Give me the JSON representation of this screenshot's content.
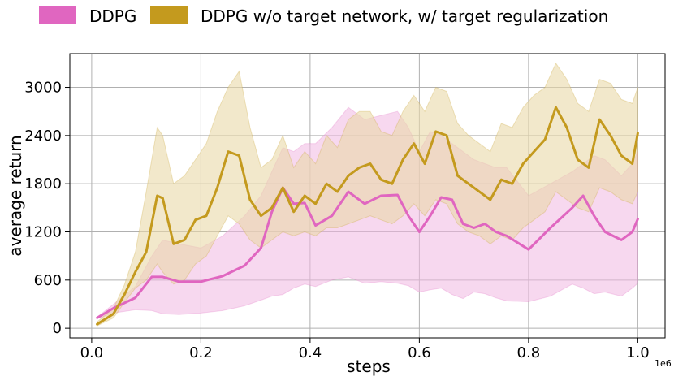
{
  "chart_data": {
    "type": "line",
    "title": "",
    "xlabel": "steps",
    "ylabel": "average return",
    "x_scale_label": "1e6",
    "xlim": [
      -0.04,
      1.05
    ],
    "ylim": [
      -120,
      3420
    ],
    "xticks": [
      0.0,
      0.2,
      0.4,
      0.6,
      0.8,
      1.0
    ],
    "xtick_labels": [
      "0.0",
      "0.2",
      "0.4",
      "0.6",
      "0.8",
      "1.0"
    ],
    "yticks": [
      0,
      600,
      1200,
      1800,
      2400,
      3000
    ],
    "ytick_labels": [
      "0",
      "600",
      "1200",
      "1800",
      "2400",
      "3000"
    ],
    "grid": true,
    "legend_position": "top",
    "series": [
      {
        "name": "DDPG",
        "color": "#e066c0",
        "band_color": "#f0b8e2",
        "x": [
          0.01,
          0.04,
          0.08,
          0.11,
          0.13,
          0.16,
          0.2,
          0.24,
          0.28,
          0.31,
          0.33,
          0.35,
          0.37,
          0.39,
          0.41,
          0.44,
          0.47,
          0.5,
          0.53,
          0.56,
          0.58,
          0.6,
          0.62,
          0.64,
          0.66,
          0.68,
          0.7,
          0.72,
          0.74,
          0.76,
          0.8,
          0.84,
          0.88,
          0.9,
          0.92,
          0.94,
          0.97,
          0.99,
          1.0
        ],
        "mean": [
          130,
          250,
          380,
          640,
          640,
          580,
          580,
          650,
          780,
          1000,
          1450,
          1750,
          1550,
          1560,
          1280,
          1400,
          1700,
          1550,
          1650,
          1660,
          1400,
          1200,
          1400,
          1630,
          1600,
          1300,
          1250,
          1300,
          1200,
          1150,
          980,
          1250,
          1500,
          1650,
          1400,
          1200,
          1100,
          1200,
          1360
        ],
        "lower": [
          120,
          190,
          230,
          220,
          180,
          170,
          190,
          220,
          280,
          350,
          400,
          420,
          500,
          550,
          520,
          600,
          640,
          560,
          580,
          560,
          530,
          450,
          480,
          500,
          420,
          370,
          450,
          430,
          380,
          340,
          330,
          400,
          550,
          500,
          430,
          450,
          400,
          500,
          560
        ],
        "upper": [
          140,
          300,
          520,
          900,
          1100,
          1050,
          1000,
          1150,
          1400,
          1650,
          1950,
          2250,
          2200,
          2300,
          2300,
          2500,
          2750,
          2600,
          2650,
          2700,
          2500,
          2200,
          2450,
          2400,
          2300,
          2200,
          2100,
          2050,
          2000,
          2000,
          1650,
          1800,
          1950,
          2050,
          2150,
          2100,
          1900,
          2050,
          2200
        ]
      },
      {
        "name": "DDPG w/o target network, w/ target regularization",
        "color": "#c49a1e",
        "band_color": "#e9d9a9",
        "x": [
          0.01,
          0.04,
          0.06,
          0.08,
          0.1,
          0.12,
          0.13,
          0.15,
          0.17,
          0.19,
          0.21,
          0.23,
          0.25,
          0.27,
          0.29,
          0.31,
          0.33,
          0.35,
          0.37,
          0.39,
          0.41,
          0.43,
          0.45,
          0.47,
          0.49,
          0.51,
          0.53,
          0.55,
          0.57,
          0.59,
          0.61,
          0.63,
          0.65,
          0.67,
          0.69,
          0.71,
          0.73,
          0.75,
          0.77,
          0.79,
          0.81,
          0.83,
          0.85,
          0.87,
          0.89,
          0.91,
          0.93,
          0.95,
          0.97,
          0.99,
          1.0
        ],
        "mean": [
          50,
          180,
          420,
          700,
          950,
          1650,
          1620,
          1050,
          1100,
          1350,
          1400,
          1750,
          2200,
          2150,
          1600,
          1400,
          1500,
          1750,
          1450,
          1650,
          1550,
          1800,
          1700,
          1900,
          2000,
          2050,
          1850,
          1800,
          2100,
          2300,
          2050,
          2450,
          2400,
          1900,
          1800,
          1700,
          1600,
          1850,
          1800,
          2050,
          2200,
          2350,
          2750,
          2500,
          2100,
          2000,
          2600,
          2400,
          2150,
          2050,
          2430
        ],
        "lower": [
          30,
          130,
          320,
          500,
          600,
          800,
          700,
          550,
          600,
          800,
          900,
          1150,
          1400,
          1300,
          1100,
          1000,
          1100,
          1200,
          1150,
          1200,
          1150,
          1250,
          1250,
          1300,
          1350,
          1400,
          1350,
          1300,
          1400,
          1550,
          1400,
          1600,
          1550,
          1300,
          1200,
          1150,
          1050,
          1150,
          1100,
          1250,
          1350,
          1450,
          1700,
          1600,
          1500,
          1450,
          1750,
          1700,
          1600,
          1550,
          1700
        ],
        "upper": [
          80,
          250,
          540,
          950,
          1700,
          2500,
          2400,
          1800,
          1900,
          2100,
          2300,
          2700,
          3000,
          3200,
          2500,
          2000,
          2100,
          2400,
          2000,
          2200,
          2050,
          2400,
          2250,
          2600,
          2700,
          2700,
          2450,
          2400,
          2700,
          2900,
          2700,
          3000,
          2950,
          2550,
          2400,
          2300,
          2200,
          2550,
          2500,
          2750,
          2900,
          3000,
          3300,
          3100,
          2800,
          2700,
          3100,
          3050,
          2850,
          2800,
          3000
        ]
      }
    ]
  }
}
